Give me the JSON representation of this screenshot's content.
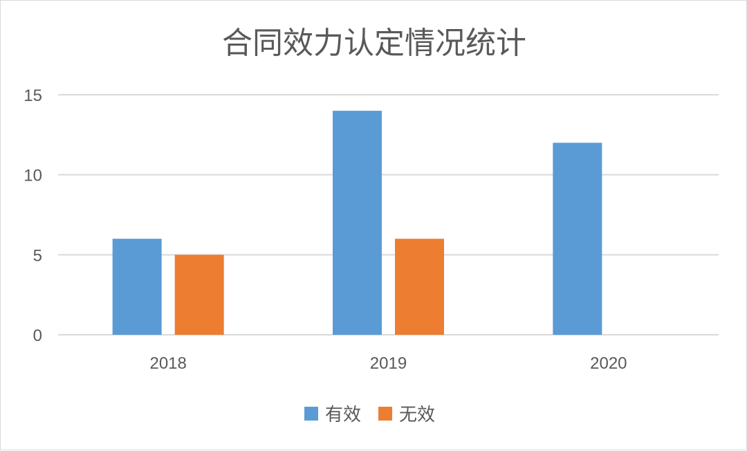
{
  "chart_data": {
    "type": "bar",
    "title": "合同效力认定情况统计",
    "categories": [
      "2018",
      "2019",
      "2020"
    ],
    "series": [
      {
        "name": "有效",
        "values": [
          6,
          14,
          12
        ],
        "color": "#5B9BD5"
      },
      {
        "name": "无效",
        "values": [
          5,
          6,
          0
        ],
        "color": "#ED7D31"
      }
    ],
    "xlabel": "",
    "ylabel": "",
    "ylim": [
      0,
      15
    ],
    "yticks": [
      0,
      5,
      10,
      15
    ],
    "grid": true,
    "legend": "bottom"
  }
}
